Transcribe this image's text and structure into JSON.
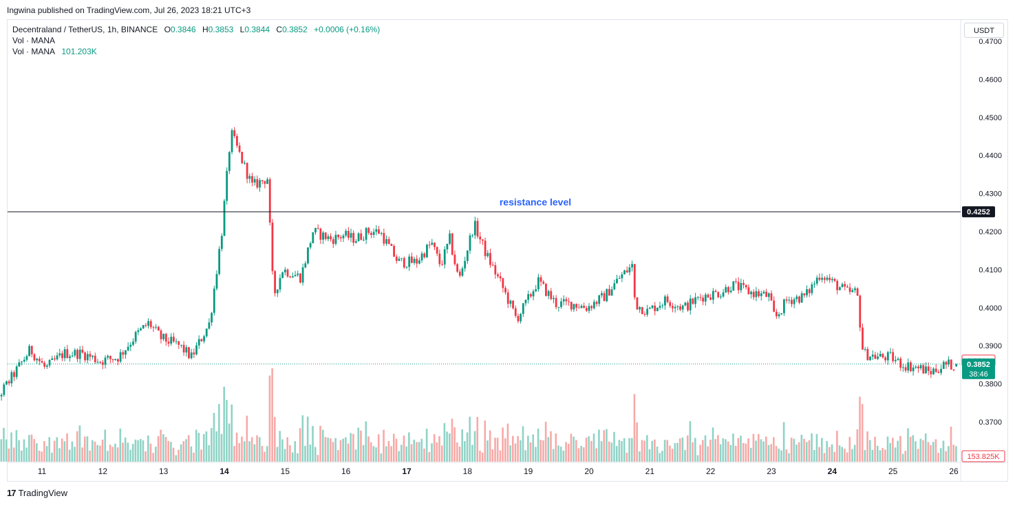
{
  "header": {
    "publish_line": "Ingwina published on TradingView.com, Jul 26, 2023 18:21 UTC+3"
  },
  "legend": {
    "symbol": "Decentraland / TetherUS, 1h, BINANCE",
    "open_label": "O",
    "open": "0.3846",
    "high_label": "H",
    "high": "0.3853",
    "low_label": "L",
    "low": "0.3844",
    "close_label": "C",
    "close": "0.3852",
    "change": "+0.0006 (+0.16%)",
    "vol_row1": "Vol · MANA",
    "vol_row2": "Vol · MANA",
    "vol_value": "101.203K"
  },
  "toolbar": {
    "currency_button": "USDT"
  },
  "footer": {
    "logo_mark": "17",
    "logo_text": "TradingView"
  },
  "colors": {
    "up": "#089981",
    "down": "#f23645",
    "vol_up": "#8fd3c6",
    "vol_down": "#f7a9a7",
    "annotation": "#2962ff",
    "resistance_line": "#131722",
    "price_badge": "#089981"
  },
  "chart_data": {
    "type": "candlestick",
    "interval": "1h",
    "y_axis": {
      "position": "right",
      "ticks": [
        "0.4700",
        "0.4600",
        "0.4500",
        "0.4400",
        "0.4300",
        "0.4200",
        "0.4100",
        "0.4000",
        "0.3900",
        "0.3800",
        "0.3700"
      ],
      "range": [
        0.364,
        0.472
      ]
    },
    "x_axis": {
      "ticks": [
        "11",
        "12",
        "13",
        "14",
        "15",
        "16",
        "17",
        "18",
        "19",
        "20",
        "21",
        "22",
        "23",
        "24",
        "25",
        "26"
      ],
      "bold_ticks": [
        "14",
        "17",
        "24"
      ]
    },
    "annotations": [
      {
        "type": "horizontal_line",
        "price": 0.4252,
        "label": "resistance level"
      },
      {
        "type": "price_badge",
        "price": 0.3861,
        "text": "0.3861",
        "style": "outline-red"
      },
      {
        "type": "current_price",
        "price": 0.3852,
        "text": "0.3852",
        "countdown": "38:46"
      },
      {
        "type": "volume_badge",
        "text": "153.825K"
      }
    ],
    "price_anchors": [
      [
        "10",
        0.37
      ],
      [
        "10.3",
        0.376
      ],
      [
        "10.6",
        0.383
      ],
      [
        "10.85",
        0.389
      ],
      [
        "11.1",
        0.384
      ],
      [
        "11.4",
        0.388
      ],
      [
        "11.7",
        0.388
      ],
      [
        "12.0",
        0.386
      ],
      [
        "12.3",
        0.387
      ],
      [
        "12.6",
        0.393
      ],
      [
        "12.8",
        0.396
      ],
      [
        "13.0",
        0.392
      ],
      [
        "13.3",
        0.39
      ],
      [
        "13.5",
        0.387
      ],
      [
        "13.8",
        0.396
      ],
      [
        "14.0",
        0.42
      ],
      [
        "14.15",
        0.446
      ],
      [
        "14.3",
        0.44
      ],
      [
        "14.5",
        0.432
      ],
      [
        "14.75",
        0.434
      ],
      [
        "14.85",
        0.403
      ],
      [
        "15.0",
        0.41
      ],
      [
        "15.3",
        0.408
      ],
      [
        "15.5",
        0.42
      ],
      [
        "15.8",
        0.418
      ],
      [
        "16.0",
        0.419
      ],
      [
        "16.2",
        0.418
      ],
      [
        "16.4",
        0.42
      ],
      [
        "16.6",
        0.42
      ],
      [
        "16.9",
        0.412
      ],
      [
        "17.2",
        0.412
      ],
      [
        "17.45",
        0.417
      ],
      [
        "17.6",
        0.411
      ],
      [
        "17.75",
        0.418
      ],
      [
        "17.9",
        0.407
      ],
      [
        "18.0",
        0.413
      ],
      [
        "18.15",
        0.422
      ],
      [
        "18.35",
        0.414
      ],
      [
        "18.6",
        0.406
      ],
      [
        "18.85",
        0.397
      ],
      [
        "19.0",
        0.401
      ],
      [
        "19.2",
        0.407
      ],
      [
        "19.5",
        0.401
      ],
      [
        "19.8",
        0.401
      ],
      [
        "20.0",
        0.4
      ],
      [
        "20.3",
        0.403
      ],
      [
        "20.55",
        0.408
      ],
      [
        "20.75",
        0.411
      ],
      [
        "20.8",
        0.401
      ],
      [
        "21.0",
        0.399
      ],
      [
        "21.3",
        0.402
      ],
      [
        "21.6",
        0.4
      ],
      [
        "21.9",
        0.403
      ],
      [
        "22.2",
        0.404
      ],
      [
        "22.4",
        0.406
      ],
      [
        "22.7",
        0.404
      ],
      [
        "23.0",
        0.403
      ],
      [
        "23.1",
        0.397
      ],
      [
        "23.3",
        0.402
      ],
      [
        "23.6",
        0.403
      ],
      [
        "23.85",
        0.409
      ],
      [
        "24.1",
        0.406
      ],
      [
        "24.3",
        0.404
      ],
      [
        "24.45",
        0.404
      ],
      [
        "24.55",
        0.388
      ],
      [
        "24.8",
        0.387
      ],
      [
        "25.0",
        0.387
      ],
      [
        "25.2",
        0.385
      ],
      [
        "25.5",
        0.384
      ],
      [
        "25.65",
        0.383
      ],
      [
        "25.9",
        0.385
      ],
      [
        "26.1",
        0.385
      ]
    ],
    "volume_range": [
      0,
      450000
    ]
  }
}
